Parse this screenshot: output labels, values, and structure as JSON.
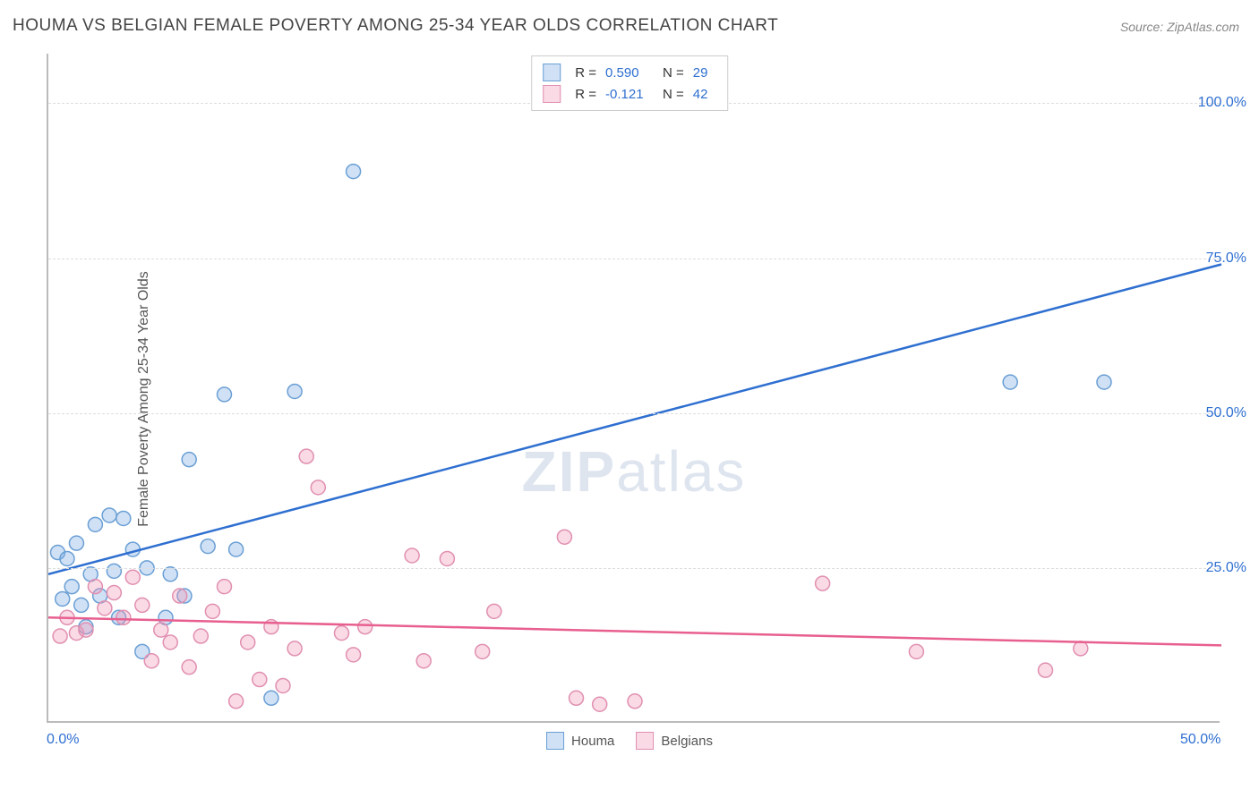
{
  "title": "HOUMA VS BELGIAN FEMALE POVERTY AMONG 25-34 YEAR OLDS CORRELATION CHART",
  "source_prefix": "Source: ",
  "source_name": "ZipAtlas.com",
  "y_axis_label": "Female Poverty Among 25-34 Year Olds",
  "watermark_zip": "ZIP",
  "watermark_atlas": "atlas",
  "chart": {
    "type": "scatter",
    "xlim": [
      0,
      50
    ],
    "ylim": [
      0,
      108
    ],
    "x_ticks": [
      {
        "value": 0,
        "label": "0.0%"
      },
      {
        "value": 50,
        "label": "50.0%"
      }
    ],
    "y_ticks": [
      {
        "value": 25,
        "label": "25.0%"
      },
      {
        "value": 50,
        "label": "50.0%"
      },
      {
        "value": 75,
        "label": "75.0%"
      },
      {
        "value": 100,
        "label": "100.0%"
      }
    ],
    "background_color": "#ffffff",
    "grid_color": "#dddddd",
    "axis_color": "#bbbbbb",
    "marker_radius": 8,
    "marker_stroke_width": 1.5,
    "line_width": 2.5,
    "series": [
      {
        "name": "Houma",
        "fill": "rgba(120,170,230,0.35)",
        "stroke": "#6a9fd4",
        "line_color": "#2e6fd0",
        "r_value": "0.590",
        "n_value": "29",
        "r_color": "#2e6fd0",
        "points": [
          [
            0.4,
            27.5
          ],
          [
            0.6,
            20.0
          ],
          [
            0.8,
            26.5
          ],
          [
            1.0,
            22.0
          ],
          [
            1.2,
            29.0
          ],
          [
            1.4,
            19.0
          ],
          [
            1.6,
            15.5
          ],
          [
            1.8,
            24.0
          ],
          [
            2.0,
            32.0
          ],
          [
            2.2,
            20.5
          ],
          [
            2.6,
            33.5
          ],
          [
            2.8,
            24.5
          ],
          [
            3.0,
            17.0
          ],
          [
            3.2,
            33.0
          ],
          [
            3.6,
            28.0
          ],
          [
            4.0,
            11.5
          ],
          [
            4.2,
            25.0
          ],
          [
            5.0,
            17.0
          ],
          [
            5.2,
            24.0
          ],
          [
            5.8,
            20.5
          ],
          [
            6.0,
            42.5
          ],
          [
            6.8,
            28.5
          ],
          [
            7.5,
            53.0
          ],
          [
            8.0,
            28.0
          ],
          [
            9.5,
            4.0
          ],
          [
            10.5,
            53.5
          ],
          [
            13.0,
            89.0
          ],
          [
            41.0,
            55.0
          ],
          [
            45.0,
            55.0
          ]
        ],
        "trend": {
          "x1": 0,
          "y1": 24.0,
          "x2": 50,
          "y2": 74.0
        }
      },
      {
        "name": "Belgians",
        "fill": "rgba(240,150,180,0.35)",
        "stroke": "#e08fb0",
        "line_color": "#e85f8f",
        "r_value": "-0.121",
        "n_value": "42",
        "r_color": "#2e6fd0",
        "points": [
          [
            0.5,
            14.0
          ],
          [
            0.8,
            17.0
          ],
          [
            1.2,
            14.5
          ],
          [
            1.6,
            15.0
          ],
          [
            2.0,
            22.0
          ],
          [
            2.4,
            18.5
          ],
          [
            2.8,
            21.0
          ],
          [
            3.2,
            17.0
          ],
          [
            3.6,
            23.5
          ],
          [
            4.0,
            19.0
          ],
          [
            4.4,
            10.0
          ],
          [
            4.8,
            15.0
          ],
          [
            5.2,
            13.0
          ],
          [
            5.6,
            20.5
          ],
          [
            6.0,
            9.0
          ],
          [
            6.5,
            14.0
          ],
          [
            7.0,
            18.0
          ],
          [
            7.5,
            22.0
          ],
          [
            8.0,
            3.5
          ],
          [
            8.5,
            13.0
          ],
          [
            9.0,
            7.0
          ],
          [
            9.5,
            15.5
          ],
          [
            10.0,
            6.0
          ],
          [
            10.5,
            12.0
          ],
          [
            11.0,
            43.0
          ],
          [
            11.5,
            38.0
          ],
          [
            12.5,
            14.5
          ],
          [
            13.0,
            11.0
          ],
          [
            13.5,
            15.5
          ],
          [
            15.5,
            27.0
          ],
          [
            16.0,
            10.0
          ],
          [
            17.0,
            26.5
          ],
          [
            18.5,
            11.5
          ],
          [
            19.0,
            18.0
          ],
          [
            22.0,
            30.0
          ],
          [
            22.5,
            4.0
          ],
          [
            23.5,
            3.0
          ],
          [
            25.0,
            3.5
          ],
          [
            33.0,
            22.5
          ],
          [
            37.0,
            11.5
          ],
          [
            42.5,
            8.5
          ],
          [
            44.0,
            12.0
          ]
        ],
        "trend": {
          "x1": 0,
          "y1": 17.0,
          "x2": 50,
          "y2": 12.5
        }
      }
    ],
    "legend_bottom": [
      {
        "label": "Houma",
        "fill": "rgba(120,170,230,0.35)",
        "stroke": "#6a9fd4"
      },
      {
        "label": "Belgians",
        "fill": "rgba(240,150,180,0.35)",
        "stroke": "#e08fb0"
      }
    ]
  }
}
